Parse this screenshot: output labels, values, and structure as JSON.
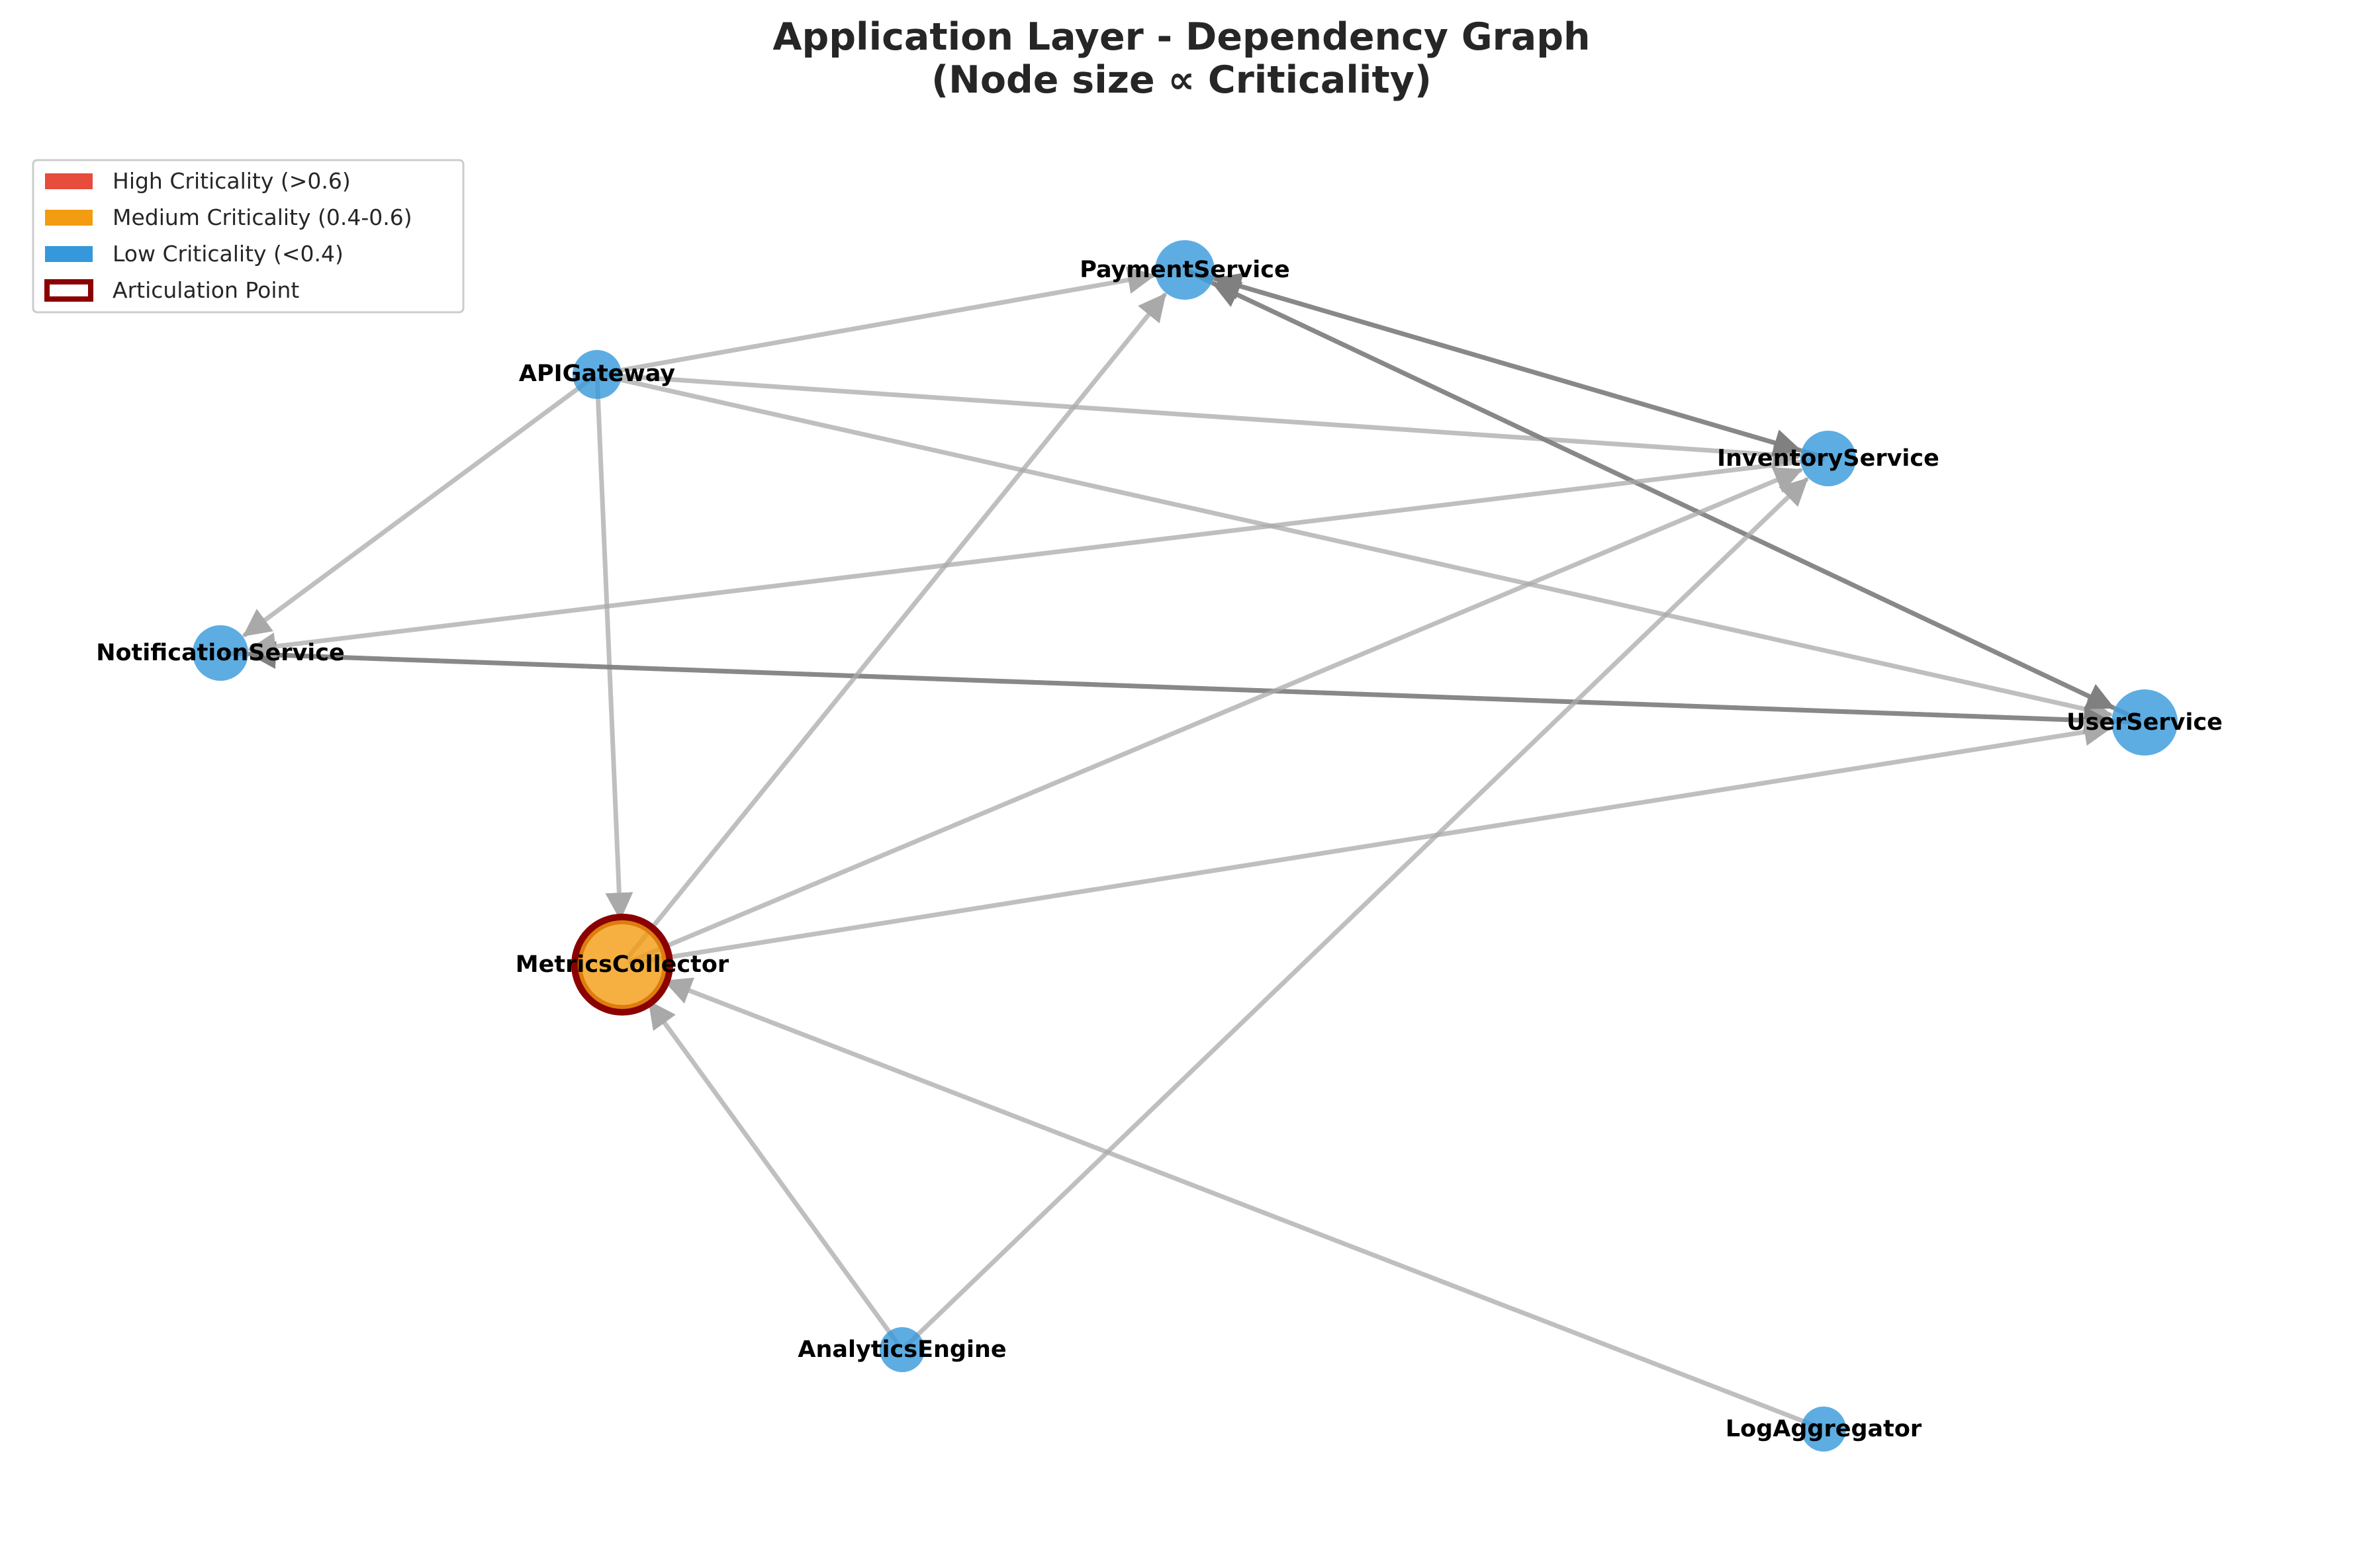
{
  "title": {
    "line1": "Application Layer - Dependency Graph",
    "line2": "(Node size ∝ Criticality)"
  },
  "legend": {
    "placement": "top-left",
    "items": [
      {
        "label": "High Criticality (>0.6)",
        "color": "#e74c3c",
        "kind": "patch"
      },
      {
        "label": "Medium Criticality (0.4-0.6)",
        "color": "#f39c12",
        "kind": "patch"
      },
      {
        "label": "Low Criticality (<0.4)",
        "color": "#3498db",
        "kind": "patch"
      },
      {
        "label": "Articulation Point",
        "color": "#8b0000",
        "kind": "outline"
      }
    ]
  },
  "colors": {
    "low": "#3498db",
    "medium": "#f39c12",
    "high": "#e74c3c",
    "articulation": "#8b0000",
    "edge_light": "#a9a9a9",
    "edge_dark": "#808080"
  },
  "nodes": [
    {
      "id": "PaymentService",
      "label": "PaymentService",
      "criticality": "low",
      "articulation": false
    },
    {
      "id": "APIGateway",
      "label": "APIGateway",
      "criticality": "low",
      "articulation": false
    },
    {
      "id": "InventoryService",
      "label": "InventoryService",
      "criticality": "low",
      "articulation": false
    },
    {
      "id": "NotificationService",
      "label": "NotificationService",
      "criticality": "low",
      "articulation": false
    },
    {
      "id": "UserService",
      "label": "UserService",
      "criticality": "low",
      "articulation": false
    },
    {
      "id": "MetricsCollector",
      "label": "MetricsCollector",
      "criticality": "medium",
      "articulation": true
    },
    {
      "id": "AnalyticsEngine",
      "label": "AnalyticsEngine",
      "criticality": "low",
      "articulation": false
    },
    {
      "id": "LogAggregator",
      "label": "LogAggregator",
      "criticality": "low",
      "articulation": false
    }
  ],
  "edges": [
    {
      "from": "APIGateway",
      "to": "PaymentService",
      "style": "light"
    },
    {
      "from": "APIGateway",
      "to": "InventoryService",
      "style": "light"
    },
    {
      "from": "APIGateway",
      "to": "UserService",
      "style": "light"
    },
    {
      "from": "APIGateway",
      "to": "NotificationService",
      "style": "light"
    },
    {
      "from": "APIGateway",
      "to": "MetricsCollector",
      "style": "light"
    },
    {
      "from": "InventoryService",
      "to": "PaymentService",
      "style": "dark"
    },
    {
      "from": "PaymentService",
      "to": "InventoryService",
      "style": "dark"
    },
    {
      "from": "UserService",
      "to": "PaymentService",
      "style": "dark"
    },
    {
      "from": "PaymentService",
      "to": "UserService",
      "style": "dark"
    },
    {
      "from": "UserService",
      "to": "NotificationService",
      "style": "dark"
    },
    {
      "from": "NotificationService",
      "to": "UserService",
      "style": "dark"
    },
    {
      "from": "InventoryService",
      "to": "NotificationService",
      "style": "light"
    },
    {
      "from": "MetricsCollector",
      "to": "PaymentService",
      "style": "light"
    },
    {
      "from": "MetricsCollector",
      "to": "InventoryService",
      "style": "light"
    },
    {
      "from": "MetricsCollector",
      "to": "UserService",
      "style": "light"
    },
    {
      "from": "AnalyticsEngine",
      "to": "MetricsCollector",
      "style": "light"
    },
    {
      "from": "AnalyticsEngine",
      "to": "InventoryService",
      "style": "light"
    },
    {
      "from": "LogAggregator",
      "to": "MetricsCollector",
      "style": "light"
    }
  ]
}
